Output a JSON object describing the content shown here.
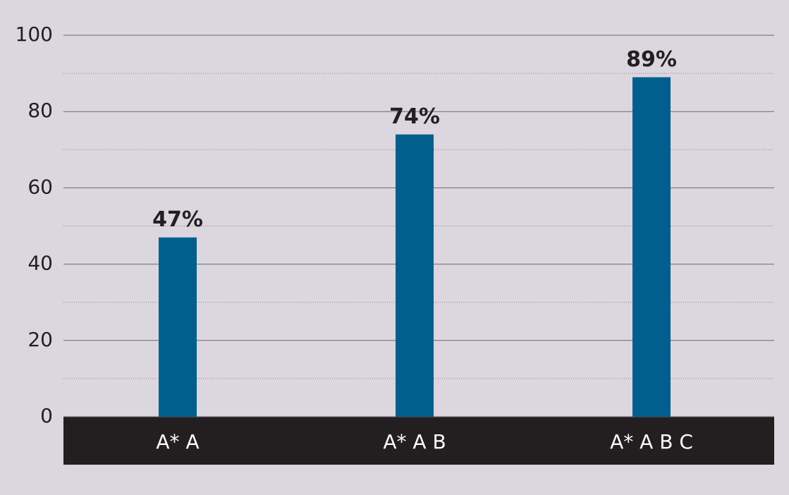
{
  "chart_data": {
    "type": "bar",
    "categories": [
      "A* A",
      "A* A B",
      "A* A B C"
    ],
    "values": [
      47,
      74,
      89
    ],
    "value_labels": [
      "47%",
      "74%",
      "89%"
    ],
    "color": "#005f8c",
    "ylim": [
      0,
      100
    ],
    "yticks": [
      0,
      20,
      40,
      60,
      80,
      100
    ],
    "minor_yticks": [
      10,
      30,
      50,
      70,
      90
    ],
    "grid": true
  }
}
